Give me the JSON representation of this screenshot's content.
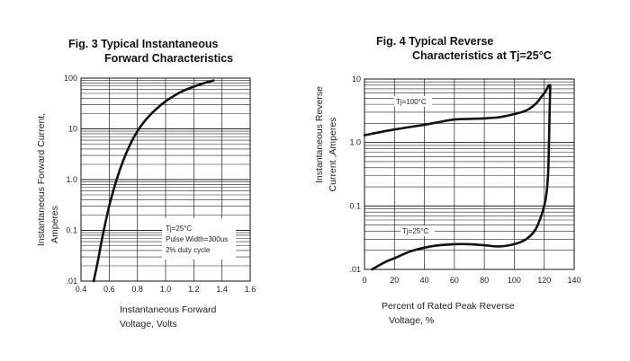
{
  "chart_data": [
    {
      "type": "line",
      "title_line1": "Fig. 3 Typical Instantaneous",
      "title_line2": "Forward Characteristics",
      "xlabel_line1": "Instantaneous Forward",
      "xlabel_line2": "Voltage, Volts",
      "ylabel_line1": "Instantaneous Forward Current,",
      "ylabel_line2": "Amperes",
      "y_scale": "log",
      "xlim": [
        0.4,
        1.6
      ],
      "ylim": [
        0.01,
        100
      ],
      "x_tick_labels": [
        "0.4",
        "0.6",
        "0.8",
        "1.0",
        "1.2",
        "1.4",
        "1.6"
      ],
      "y_tick_labels": [
        ".01",
        "0.1",
        "1.0",
        "10",
        "100"
      ],
      "grid": true,
      "annotation": [
        "Tj=25°C",
        "Pulse Width=300us",
        "2% duty cycle"
      ],
      "series": [
        {
          "x": [
            0.49,
            0.52,
            0.55,
            0.6,
            0.65,
            0.7,
            0.75,
            0.8,
            0.85,
            0.9,
            0.95,
            1.0,
            1.05,
            1.1,
            1.15,
            1.2,
            1.25,
            1.3,
            1.34
          ],
          "y": [
            0.01,
            0.025,
            0.07,
            0.3,
            0.95,
            2.4,
            5.0,
            9.0,
            14.0,
            20.0,
            27.0,
            35.0,
            43.0,
            52.0,
            60.0,
            68.0,
            76.0,
            84.0,
            90.0
          ]
        }
      ]
    },
    {
      "type": "line",
      "title_line1": "Fig. 4 Typical Reverse",
      "title_line2": "Characteristics at Tj=25°C",
      "xlabel_line1": "Percent of Rated Peak Reverse",
      "xlabel_line2": "Voltage, %",
      "ylabel_line1": "Instantaneous Reverse",
      "ylabel_line2": "Current ,Amperes",
      "y_scale": "log",
      "xlim": [
        0,
        140
      ],
      "ylim": [
        0.01,
        10
      ],
      "x_tick_labels": [
        "0",
        "20",
        "40",
        "60",
        "80",
        "100",
        "120",
        "140"
      ],
      "y_tick_labels": [
        ".01",
        "0.1",
        "1.0",
        "10"
      ],
      "grid": true,
      "series": [
        {
          "name": "Tj=100°C",
          "x": [
            0,
            10,
            20,
            30,
            40,
            50,
            60,
            70,
            80,
            90,
            100,
            108,
            114,
            118,
            121,
            123
          ],
          "y": [
            1.3,
            1.45,
            1.6,
            1.75,
            1.9,
            2.1,
            2.3,
            2.35,
            2.4,
            2.5,
            2.8,
            3.2,
            4.0,
            5.2,
            6.5,
            8.0
          ]
        },
        {
          "name": "Tj=25°C",
          "x": [
            5,
            10,
            15,
            20,
            30,
            40,
            50,
            60,
            70,
            80,
            90,
            100,
            108,
            114,
            118,
            121,
            122.5,
            123.2,
            123.6,
            124
          ],
          "y": [
            0.01,
            0.0117,
            0.0135,
            0.015,
            0.019,
            0.022,
            0.024,
            0.025,
            0.025,
            0.024,
            0.023,
            0.025,
            0.03,
            0.042,
            0.07,
            0.13,
            0.3,
            1.0,
            3.0,
            8.0
          ]
        }
      ]
    }
  ]
}
